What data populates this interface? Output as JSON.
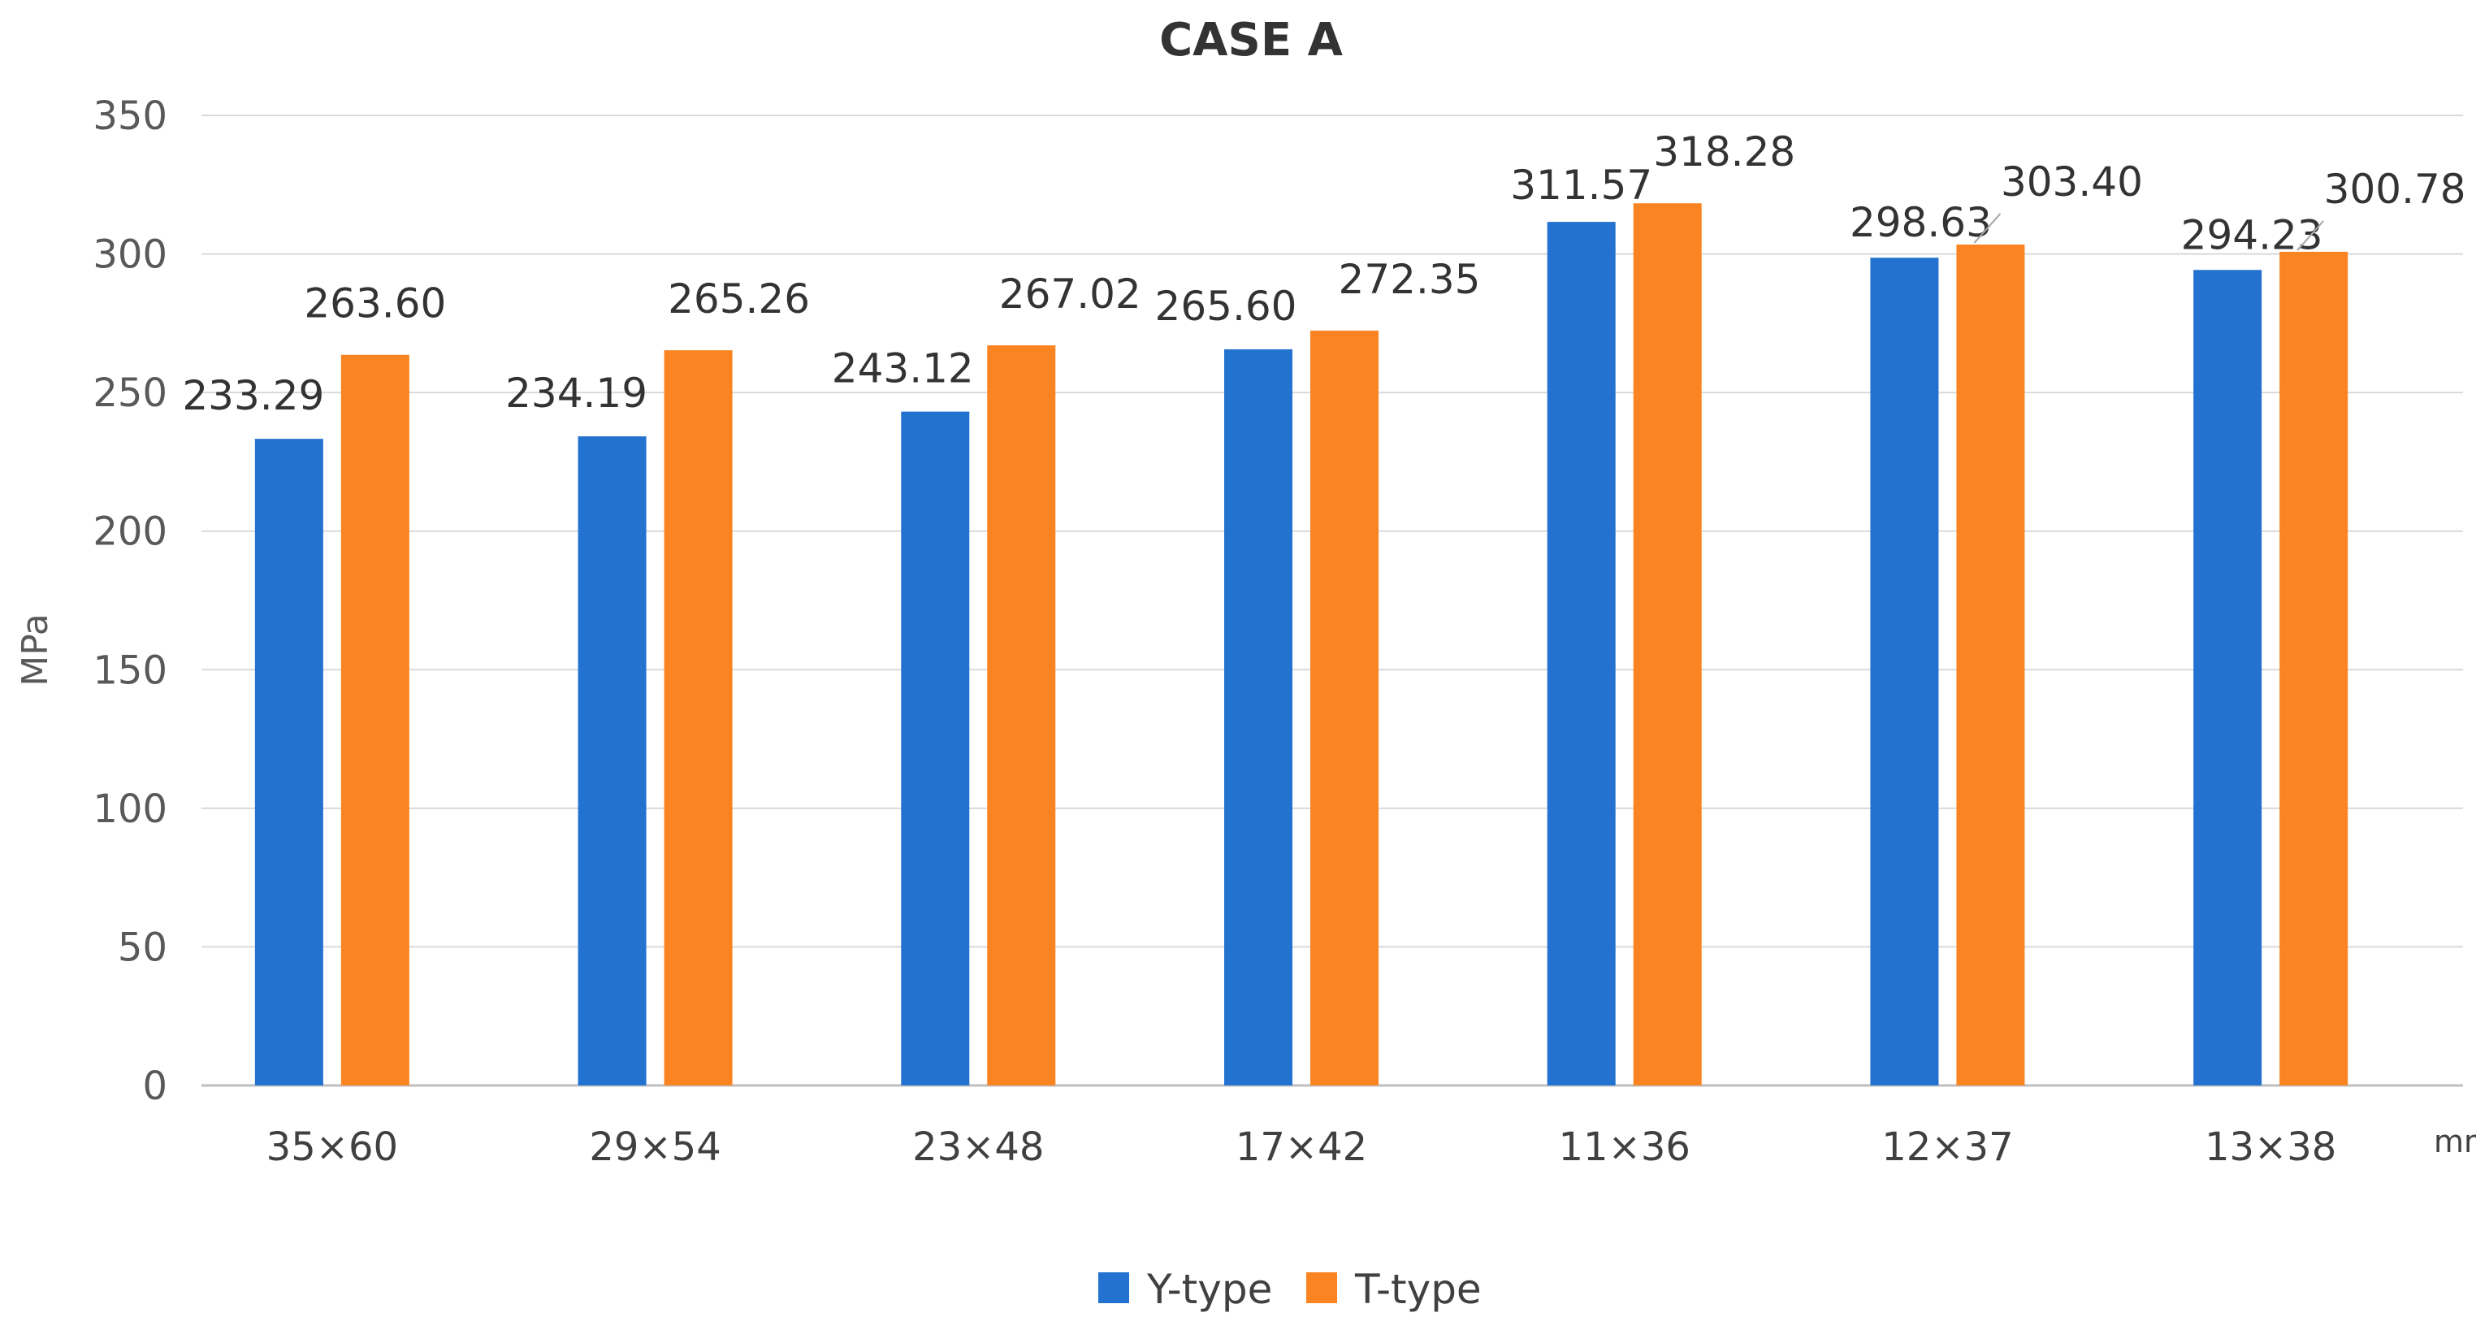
{
  "chart_data": {
    "type": "bar",
    "title": "CASE A",
    "ylabel": "MPa",
    "xlabel": "",
    "x_unit": "mm",
    "ylim": [
      0,
      350
    ],
    "yticks": [
      0,
      50,
      100,
      150,
      200,
      250,
      300,
      350
    ],
    "grid": true,
    "legend_position": "bottom",
    "categories": [
      "35×60",
      "29×54",
      "23×48",
      "17×42",
      "11×36",
      "12×37",
      "13×38"
    ],
    "series": [
      {
        "name": "Y-type",
        "color": "#2372d0",
        "values": [
          233.29,
          234.19,
          243.12,
          265.6,
          311.57,
          298.63,
          294.23
        ],
        "labels": [
          "233.29",
          "234.19",
          "243.12",
          "265.60",
          "311.57",
          "298.63",
          "294.23"
        ]
      },
      {
        "name": "T-type",
        "color": "#fb8422",
        "values": [
          263.6,
          265.26,
          267.02,
          272.35,
          318.28,
          303.4,
          300.78
        ],
        "labels": [
          "263.60",
          "265.26",
          "267.02",
          "272.35",
          "318.28",
          "303.40",
          "300.78"
        ]
      }
    ]
  }
}
